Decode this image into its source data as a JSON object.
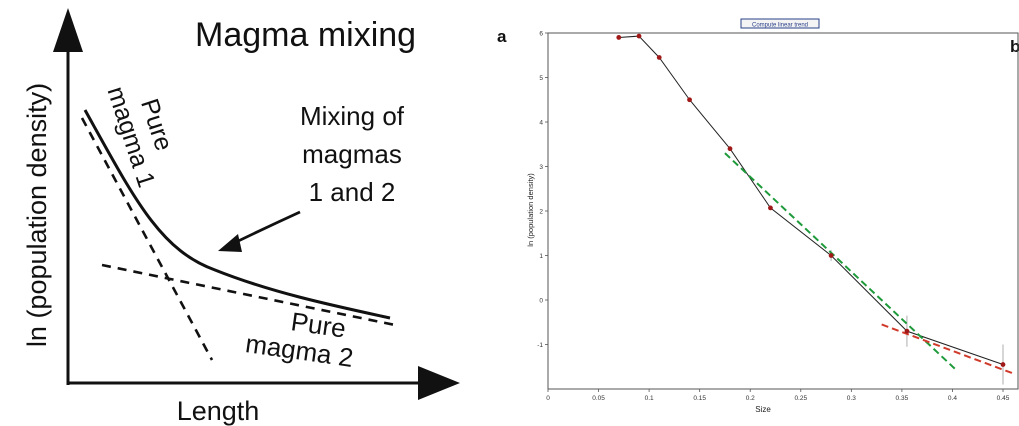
{
  "chart_data": [
    {
      "type": "line",
      "title": "Magma mixing",
      "xlabel": "Length",
      "ylabel": "ln (population density)",
      "annotations": {
        "pure1": [
          "Pure",
          "magma 1"
        ],
        "mixing": [
          "Mixing of",
          "magmas",
          "1 and 2"
        ],
        "pure2": [
          "Pure",
          "magma 2"
        ]
      },
      "series": [
        {
          "name": "Pure magma 1",
          "style": "dashed"
        },
        {
          "name": "Pure magma 2",
          "style": "dashed"
        },
        {
          "name": "Mixing of magmas 1 and 2",
          "style": "solid"
        }
      ]
    },
    {
      "type": "line",
      "panel_label": "a",
      "panel_label_b": "b",
      "button_label": "Compute linear trend",
      "xlabel": "Size",
      "ylabel": "ln (population density)",
      "xlim": [
        0,
        0.45
      ],
      "ylim": [
        -2,
        6
      ],
      "xticks": [
        "0",
        "0.05",
        "0.1",
        "0.15",
        "0.2",
        "0.25",
        "0.3",
        "0.35",
        "0.4",
        "0.45"
      ],
      "yticks": [
        "-1",
        "0",
        "1",
        "2",
        "3",
        "4",
        "5",
        "6"
      ],
      "series": [
        {
          "name": "data",
          "color": "#a01818",
          "x": [
            0.07,
            0.09,
            0.11,
            0.14,
            0.18,
            0.22,
            0.28,
            0.355,
            0.45
          ],
          "y": [
            5.9,
            5.93,
            5.45,
            4.5,
            3.4,
            2.07,
            1.0,
            -0.7,
            -1.45
          ]
        },
        {
          "name": "trend-green",
          "color": "#1e9a3a",
          "style": "dashed",
          "x": [
            0.175,
            0.405
          ],
          "y": [
            3.3,
            -1.6
          ]
        },
        {
          "name": "trend-red",
          "color": "#d03a2a",
          "style": "dashed",
          "x": [
            0.33,
            0.46
          ],
          "y": [
            -0.55,
            -1.65
          ]
        }
      ],
      "error_bars": [
        {
          "x": 0.355,
          "y": -0.7,
          "half": 0.35
        },
        {
          "x": 0.45,
          "y": -1.45,
          "half": 0.45
        },
        {
          "x": 0.28,
          "y": 1.0,
          "half": 0.12
        }
      ]
    }
  ]
}
